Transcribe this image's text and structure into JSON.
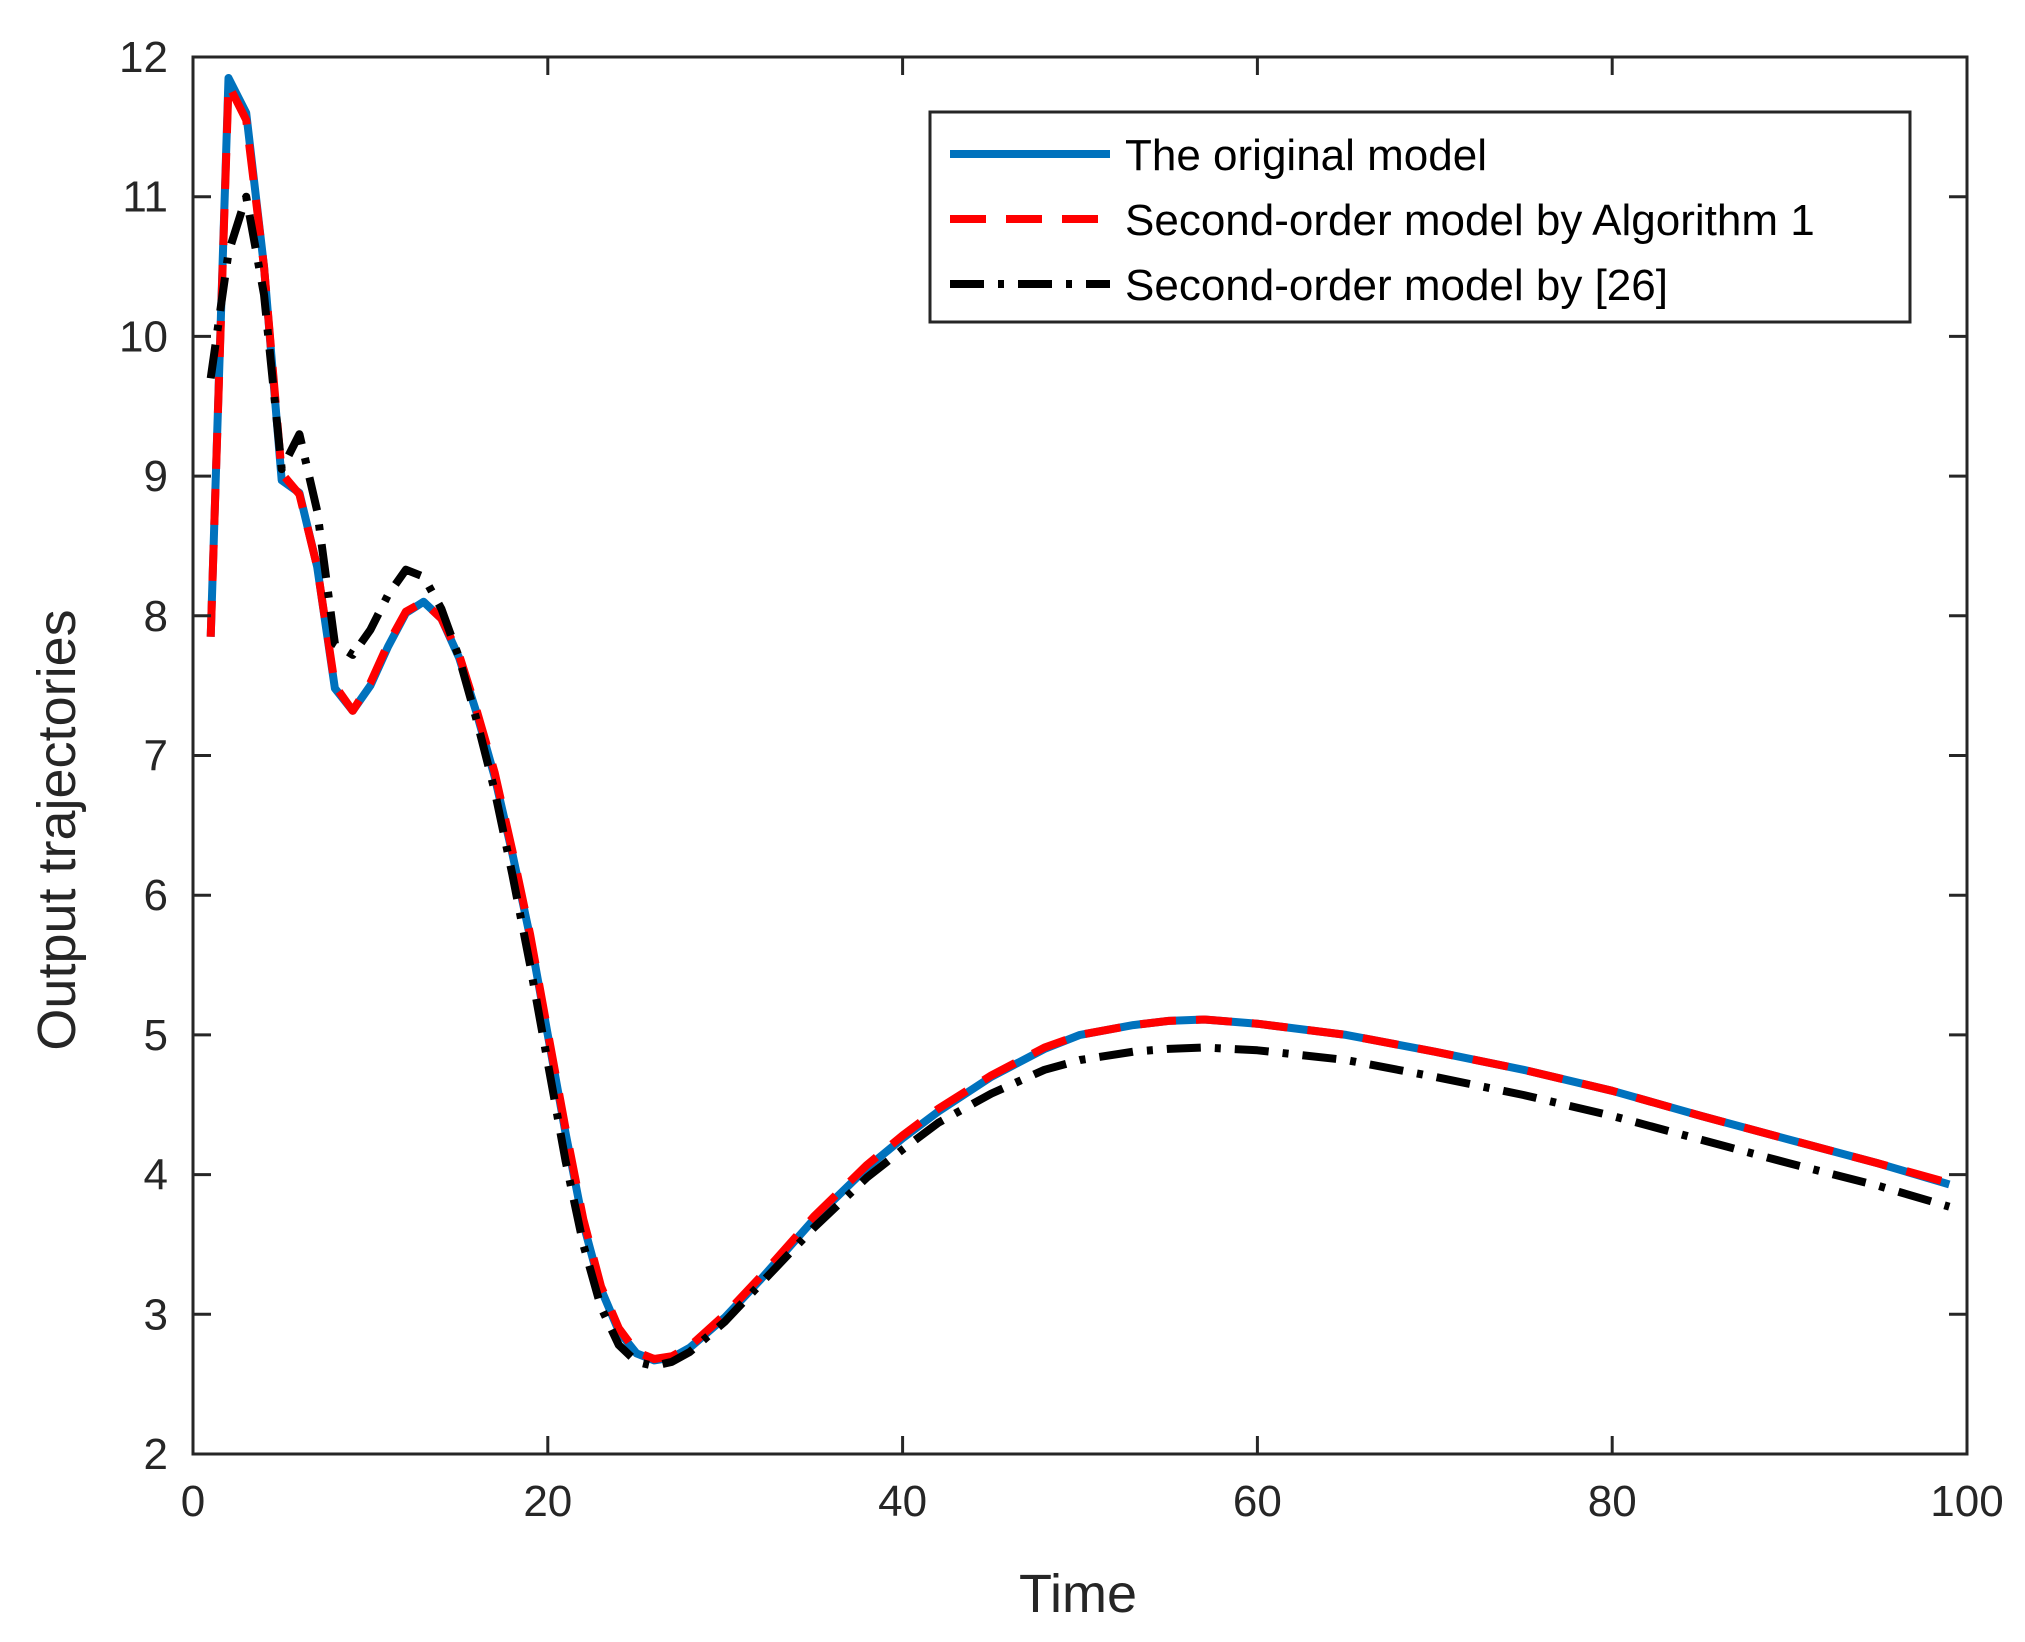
{
  "chart_data": {
    "type": "line",
    "title": "",
    "xlabel": "Time",
    "ylabel": "Output trajectories",
    "xlim": [
      0,
      100
    ],
    "ylim": [
      2,
      12
    ],
    "x_ticks": [
      0,
      20,
      40,
      60,
      80,
      100
    ],
    "y_ticks": [
      2,
      3,
      4,
      5,
      6,
      7,
      8,
      9,
      10,
      11,
      12
    ],
    "grid": false,
    "legend_position": "top-right",
    "series": [
      {
        "name": "The original model",
        "color": "#0072BD",
        "style": "solid",
        "x": [
          1,
          2,
          3,
          4,
          5,
          6,
          7,
          8,
          9,
          10,
          11,
          12,
          13,
          14,
          15,
          16,
          17,
          18,
          19,
          20,
          21,
          22,
          23,
          24,
          25,
          26,
          27,
          28,
          30,
          32,
          35,
          38,
          40,
          42,
          45,
          48,
          50,
          53,
          55,
          57,
          60,
          65,
          70,
          75,
          80,
          85,
          90,
          95,
          99
        ],
        "y": [
          7.85,
          11.85,
          11.6,
          10.5,
          8.97,
          8.88,
          8.35,
          7.48,
          7.32,
          7.5,
          7.78,
          8.02,
          8.1,
          7.98,
          7.7,
          7.3,
          6.85,
          6.3,
          5.7,
          5.0,
          4.3,
          3.65,
          3.18,
          2.88,
          2.72,
          2.67,
          2.69,
          2.76,
          2.98,
          3.25,
          3.68,
          4.05,
          4.26,
          4.45,
          4.7,
          4.9,
          5.0,
          5.07,
          5.1,
          5.11,
          5.08,
          5.0,
          4.88,
          4.75,
          4.6,
          4.42,
          4.25,
          4.08,
          3.93
        ]
      },
      {
        "name": "Second-order model by Algorithm 1",
        "color": "#FF0000",
        "style": "dashed",
        "x": [
          1,
          2,
          3,
          4,
          5,
          6,
          7,
          8,
          9,
          10,
          11,
          12,
          13,
          14,
          15,
          16,
          17,
          18,
          19,
          20,
          21,
          22,
          23,
          24,
          25,
          26,
          27,
          28,
          30,
          32,
          35,
          38,
          40,
          42,
          45,
          48,
          50,
          53,
          55,
          57,
          60,
          65,
          70,
          75,
          80,
          85,
          90,
          95,
          99
        ],
        "y": [
          7.85,
          11.8,
          11.55,
          10.5,
          9.02,
          8.87,
          8.35,
          7.5,
          7.32,
          7.52,
          7.8,
          8.03,
          8.1,
          7.98,
          7.72,
          7.32,
          6.88,
          6.32,
          5.72,
          5.02,
          4.33,
          3.68,
          3.2,
          2.9,
          2.73,
          2.68,
          2.7,
          2.77,
          3.0,
          3.27,
          3.7,
          4.07,
          4.28,
          4.47,
          4.71,
          4.91,
          5.0,
          5.07,
          5.1,
          5.11,
          5.08,
          5.0,
          4.88,
          4.75,
          4.6,
          4.42,
          4.25,
          4.08,
          3.94
        ]
      },
      {
        "name": "Second-order model by [26]",
        "color": "#000000",
        "style": "dashdot",
        "x": [
          1,
          2,
          3,
          4,
          5,
          6,
          7,
          8,
          9,
          10,
          11,
          12,
          13,
          14,
          15,
          16,
          17,
          18,
          19,
          20,
          21,
          22,
          23,
          24,
          25,
          26,
          27,
          28,
          30,
          32,
          35,
          38,
          40,
          42,
          45,
          48,
          50,
          53,
          55,
          57,
          60,
          65,
          70,
          75,
          80,
          85,
          90,
          95,
          99
        ],
        "y": [
          9.7,
          10.6,
          11.0,
          10.3,
          9.05,
          9.3,
          8.75,
          7.8,
          7.72,
          7.9,
          8.15,
          8.33,
          8.28,
          8.05,
          7.7,
          7.25,
          6.75,
          6.15,
          5.5,
          4.8,
          4.1,
          3.5,
          3.05,
          2.78,
          2.66,
          2.63,
          2.66,
          2.73,
          2.95,
          3.22,
          3.62,
          3.98,
          4.18,
          4.37,
          4.58,
          4.75,
          4.82,
          4.88,
          4.9,
          4.91,
          4.89,
          4.82,
          4.7,
          4.57,
          4.42,
          4.25,
          4.08,
          3.92,
          3.77
        ]
      }
    ]
  }
}
